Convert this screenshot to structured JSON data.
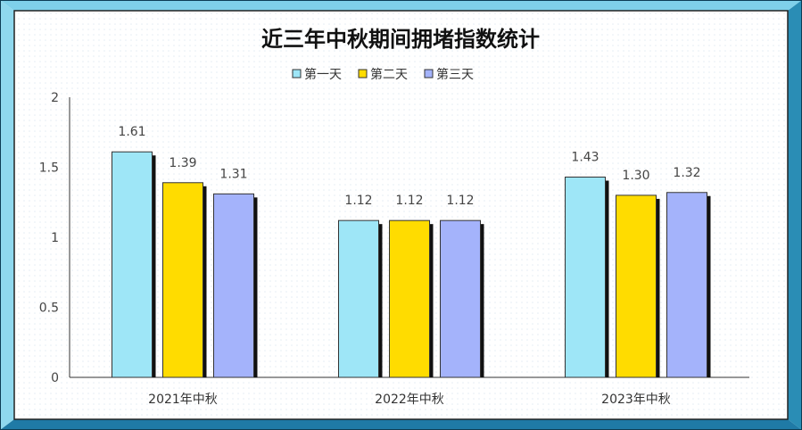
{
  "chart_data": {
    "type": "bar",
    "title": "近三年中秋期间拥堵指数统计",
    "categories": [
      "2021年中秋",
      "2022年中秋",
      "2023年中秋"
    ],
    "series": [
      {
        "name": "第一天",
        "color": "#9ee6f7",
        "values": [
          1.61,
          1.12,
          1.43
        ],
        "labels": [
          "1.61",
          "1.12",
          "1.43"
        ]
      },
      {
        "name": "第二天",
        "color": "#ffdc00",
        "values": [
          1.39,
          1.12,
          1.3
        ],
        "labels": [
          "1.39",
          "1.12",
          "1.30"
        ]
      },
      {
        "name": "第三天",
        "color": "#a4b3fb",
        "values": [
          1.31,
          1.12,
          1.32
        ],
        "labels": [
          "1.31",
          "1.12",
          "1.32"
        ]
      }
    ],
    "ylim": [
      0,
      2
    ],
    "yticks": [
      "0",
      "0.5",
      "1",
      "1.5",
      "2"
    ],
    "legend_position": "top-center",
    "grid": false,
    "frame_color": "#4db8d9"
  }
}
